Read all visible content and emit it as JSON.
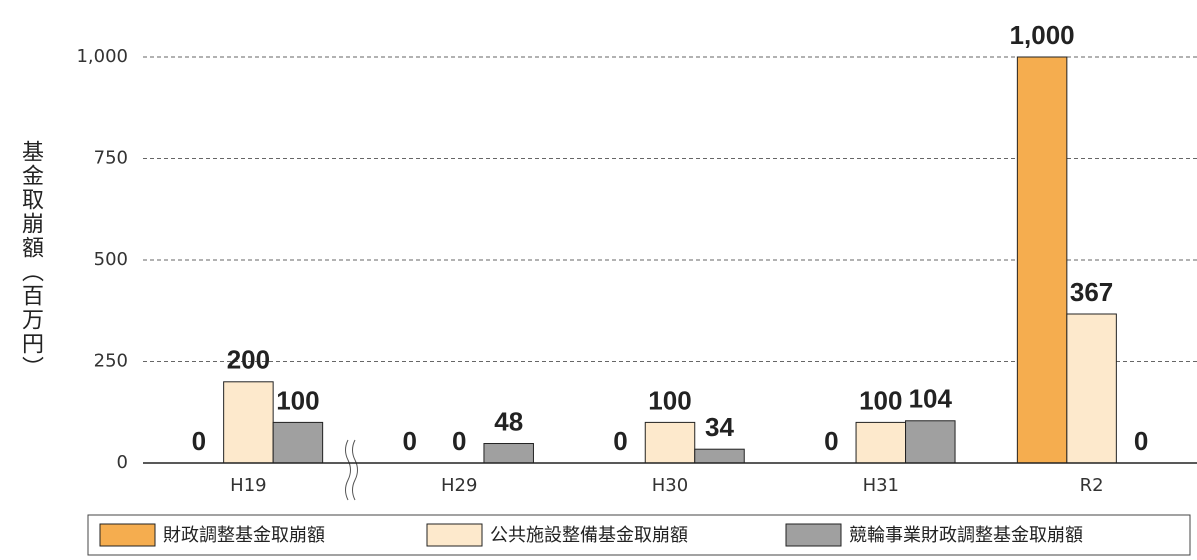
{
  "chart_data": {
    "type": "bar",
    "y_label": "基金取崩額（百万円）",
    "categories": [
      "H19",
      "H29",
      "H30",
      "H31",
      "R2"
    ],
    "series": [
      {
        "name": "財政調整基金取崩額",
        "color": "#f5ad4f",
        "values": [
          0,
          0,
          0,
          0,
          1000
        ],
        "value_labels": [
          "0",
          "0",
          "0",
          "0",
          "1,000"
        ]
      },
      {
        "name": "公共施設整備基金取崩額",
        "color": "#fde9cc",
        "values": [
          200,
          0,
          100,
          100,
          367
        ]
      },
      {
        "name": "競輪事業財政調整基金取崩額",
        "color": "#a0a0a0",
        "values": [
          100,
          48,
          34,
          104,
          0
        ]
      }
    ],
    "ylim": [
      0,
      1000
    ],
    "yticks": [
      0,
      250,
      500,
      750,
      {
        "value": 1000,
        "label": "1,000"
      }
    ],
    "grid": true,
    "legend": "bottom"
  }
}
